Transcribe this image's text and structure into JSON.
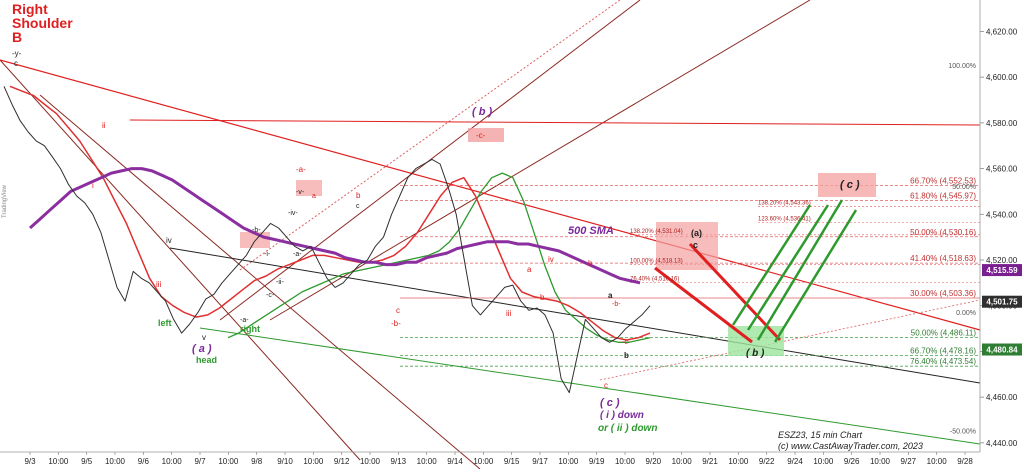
{
  "chart_data": {
    "type": "line",
    "instrument_label": "ESZ23, 15 min Chart",
    "copyright": "(c)  www.CastAwayTrader.com,  2023",
    "watermark": "TradingView",
    "ylim": [
      4436,
      4632
    ],
    "y_ticks": [
      4440,
      4460,
      4480,
      4500,
      4520,
      4540,
      4560,
      4580,
      4600,
      4620
    ],
    "y_tick_labels": [
      "4,440.00",
      "4,460.00",
      "4,480.00",
      "4,500.00",
      "4,520.00",
      "4,540.00",
      "4,560.00",
      "4,580.00",
      "4,600.00",
      "4,620.00"
    ],
    "x_tick_labels": [
      "9/3",
      "10:00",
      "9/5",
      "10:00",
      "9/6",
      "10:00",
      "9/7",
      "10:00",
      "9/8",
      "9/10",
      "10:00",
      "9/12",
      "10:00",
      "9/13",
      "10:00",
      "9/14",
      "10:00",
      "9/15",
      "9/17",
      "10:00",
      "9/19",
      "10:00",
      "9/20",
      "10:00",
      "9/21",
      "10:00",
      "9/22",
      "9/24",
      "10:00",
      "9/26",
      "10:00",
      "9/27",
      "10:00",
      "9/28"
    ],
    "price_series": {
      "name": "",
      "color": "#2f2f2f",
      "values": [
        4596,
        4588,
        4581,
        4576,
        4572,
        4570,
        4565,
        4560,
        4553,
        4548,
        4545,
        4540,
        4532,
        4520,
        4508,
        4502,
        4515,
        4512,
        4510,
        4506,
        4502,
        4494,
        4488,
        4492,
        4497,
        4503,
        4505,
        4510,
        4514,
        4518,
        4522,
        4528,
        4532,
        4536,
        4534,
        4530,
        4526,
        4524,
        4526,
        4519,
        4512,
        4508,
        4510,
        4514,
        4518,
        4520,
        4526,
        4530,
        4540,
        4548,
        4556,
        4560,
        4562,
        4564,
        4562,
        4552,
        4540,
        4520,
        4500,
        4496,
        4500,
        4504,
        4508,
        4509,
        4502,
        4498,
        4499,
        4496,
        4488,
        4468,
        4462,
        4478,
        4494,
        4490,
        4486,
        4484,
        4486,
        4490,
        4493,
        4496,
        4500
      ]
    },
    "sma_series": {
      "name": "500 SMA",
      "color": "#8b2fa0",
      "values": [
        4534,
        4538,
        4542,
        4546,
        4550,
        4552,
        4554,
        4556,
        4558,
        4559,
        4560,
        4560,
        4559,
        4557,
        4555,
        4552,
        4549,
        4546,
        4543,
        4540,
        4537,
        4534,
        4532,
        4530,
        4529,
        4528,
        4527,
        4526,
        4525,
        4524,
        4523,
        4521,
        4520,
        4519,
        4519,
        4518,
        4518,
        4519,
        4519,
        4521,
        4522,
        4523,
        4525,
        4526,
        4527,
        4528,
        4528,
        4528,
        4527,
        4527,
        4526,
        4525,
        4524,
        4522,
        4520,
        4518,
        4516,
        4514,
        4512,
        4511,
        4510
      ]
    },
    "fast_ma_series": {
      "name": "",
      "color": "#e03030",
      "values": [
        4596,
        4594,
        4592,
        4588,
        4584,
        4578,
        4572,
        4564,
        4556,
        4546,
        4536,
        4524,
        4512,
        4504,
        4500,
        4497,
        4495,
        4496,
        4499,
        4503,
        4507,
        4511,
        4513,
        4516,
        4518,
        4520,
        4522,
        4522,
        4521,
        4520,
        4519,
        4519,
        4520,
        4522,
        4526,
        4532,
        4540,
        4548,
        4554,
        4556,
        4548,
        4536,
        4524,
        4512,
        4506,
        4504,
        4503,
        4502,
        4500,
        4497,
        4493,
        4489,
        4486,
        4485,
        4486,
        4488
      ]
    },
    "green_ma_series": {
      "name": "",
      "color": "#2e9a2e",
      "values": [
        4486,
        4488,
        4491,
        4494,
        4497,
        4500,
        4503,
        4506,
        4508,
        4510,
        4512,
        4514,
        4515,
        4516,
        4517,
        4518,
        4519,
        4520,
        4521,
        4522,
        4524,
        4528,
        4534,
        4542,
        4550,
        4556,
        4558,
        4556,
        4546,
        4532,
        4518,
        4506,
        4498,
        4494,
        4490,
        4487,
        4485,
        4484,
        4484,
        4485,
        4486
      ]
    },
    "fib_levels": [
      {
        "label": "66.70% (4,552.53)",
        "value": 4552.53,
        "color": "#e06060",
        "style": "dashed"
      },
      {
        "label": "61.80% (4,545.97)",
        "value": 4545.97,
        "color": "#e06060",
        "style": "dashed"
      },
      {
        "label": "50.00% (4,530.16)",
        "value": 4530.16,
        "color": "#e06060",
        "style": "dashed"
      },
      {
        "label": "41.40% (4,518.63)",
        "value": 4518.63,
        "color": "#e06060",
        "style": "dashed"
      },
      {
        "label": "30.00% (4,503.36)",
        "value": 4503.36,
        "color": "#e06060",
        "style": "solid"
      },
      {
        "label": "50.00% (4,486.11)",
        "value": 4486.11,
        "color": "#4ea04e",
        "style": "dashed"
      },
      {
        "label": "66.70% (4,478.16)",
        "value": 4478.16,
        "color": "#4ea04e",
        "style": "dashed"
      },
      {
        "label": "76.40% (4,473.54)",
        "value": 4473.54,
        "color": "#4ea04e",
        "style": "dashed"
      }
    ],
    "minor_fib_labels": [
      {
        "label": "138.20% (4,531.04)",
        "value": 4531.04
      },
      {
        "label": "100.00% (4,518.13)",
        "value": 4518.13
      },
      {
        "label": "76.40% (4,510.16)",
        "value": 4510.16
      },
      {
        "label": "138.20% (4,543.36)",
        "value": 4543.36
      },
      {
        "label": "123.60% (4,536.41)",
        "value": 4536.41
      }
    ],
    "side_pct_labels": [
      {
        "label": "100.00%",
        "value": 4604
      },
      {
        "label": "50.00%",
        "value": 4551
      },
      {
        "label": "0.00%",
        "value": 4496
      },
      {
        "label": "-50.00%",
        "value": 4444
      }
    ],
    "price_badges": [
      {
        "label": "4,515.59",
        "value": 4515.59,
        "color": "#7a1f8f"
      },
      {
        "label": "4,501.75",
        "value": 4501.75,
        "color": "#2f2f2f"
      },
      {
        "label": "4,480.84",
        "value": 4480.84,
        "color": "#2e7d32"
      }
    ],
    "annotations": {
      "title_lines": [
        "Right",
        "Shoulder",
        "B"
      ],
      "y_mark": "-y-",
      "c_top": "c",
      "left_ii": "ii",
      "left_i": "i",
      "iii_left": "iii",
      "iv_left": "iv",
      "left_label": "left",
      "v_label": "v",
      "a_paren": "( a )",
      "head_label": "head",
      "right_label": "right",
      "a_dash": "-a-",
      "b_dash": "-b-",
      "c_dash": "-c-",
      "i_dash": "-i-",
      "ii_dash": "-ii-",
      "iv_dash": "-iv-",
      "v_dash": "-v-",
      "a_top": "-a-",
      "b_label": "b",
      "c_label": "c",
      "a_small": "a",
      "c_bottom": "c",
      "b_bottom": "-b-",
      "b_paren": "( b )",
      "c_top_box": "-c-",
      "sma_label": "500 SMA",
      "a_box": "(a)",
      "c_box": "c",
      "iv_mid": "iv",
      "iii_mid": "iii",
      "b_mid": "b",
      "a_mid": "a",
      "b_small2": "b",
      "a_right": "a",
      "b_dash2": "-b-",
      "c_dash2": "-c-",
      "b_below": "b",
      "c_lowest": "c",
      "c_paren": "( c )",
      "i_down": "( i ) down",
      "ii_down": "or ( ii ) down",
      "c_paren_box": "( c )",
      "b_paren_green": "( b )"
    },
    "colors": {
      "red": "#e02020",
      "brown": "#8b2a22",
      "purple": "#7a2a9a",
      "green": "#2e9a2e",
      "black": "#222222",
      "box_red": "#f4a0a0",
      "box_green": "#9ee59e"
    }
  }
}
